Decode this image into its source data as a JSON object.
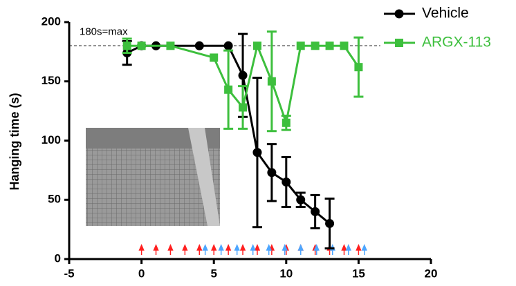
{
  "chart_data": {
    "type": "line",
    "y_label": "Hanging time (s)",
    "xlim": [
      -5,
      20
    ],
    "xticks": [
      -5,
      0,
      5,
      10,
      15,
      20
    ],
    "ylim": [
      0,
      200
    ],
    "yticks": [
      0,
      50,
      100,
      150,
      200
    ],
    "reference_line": {
      "value": 180,
      "label": "180s=max"
    },
    "series": [
      {
        "name": "Vehicle",
        "color": "#000000",
        "marker": "circle",
        "x": [
          -1,
          0,
          1,
          4,
          6,
          7,
          8,
          9,
          10,
          11,
          12,
          13
        ],
        "values": [
          174,
          180,
          180,
          180,
          180,
          155,
          90,
          73,
          65,
          50,
          40,
          30
        ],
        "errors": [
          10,
          0,
          0,
          0,
          0,
          35,
          63,
          24,
          21,
          6,
          14,
          21
        ]
      },
      {
        "name": "ARGX-113",
        "color": "#3dbf3d",
        "marker": "square",
        "x": [
          -1,
          0,
          2,
          5,
          6,
          7,
          8,
          9,
          10,
          11,
          12,
          13,
          14,
          15
        ],
        "values": [
          180,
          180,
          180,
          170,
          143,
          128,
          180,
          150,
          115,
          180,
          180,
          180,
          180,
          162
        ],
        "errors": [
          6,
          0,
          0,
          0,
          33,
          18,
          0,
          42,
          6,
          0,
          0,
          0,
          0,
          25
        ]
      }
    ],
    "dose_markers": [
      {
        "color": "#ff2020",
        "x": [
          0,
          1,
          2,
          3,
          4,
          5,
          6,
          7,
          8,
          9,
          10,
          11,
          12,
          13,
          14,
          15
        ]
      },
      {
        "color": "#4da6ff",
        "x": [
          4.4,
          5.5,
          6.6,
          7.7,
          8.8,
          9.9,
          11,
          12.1,
          13.2,
          14.3,
          15.4
        ]
      }
    ]
  }
}
